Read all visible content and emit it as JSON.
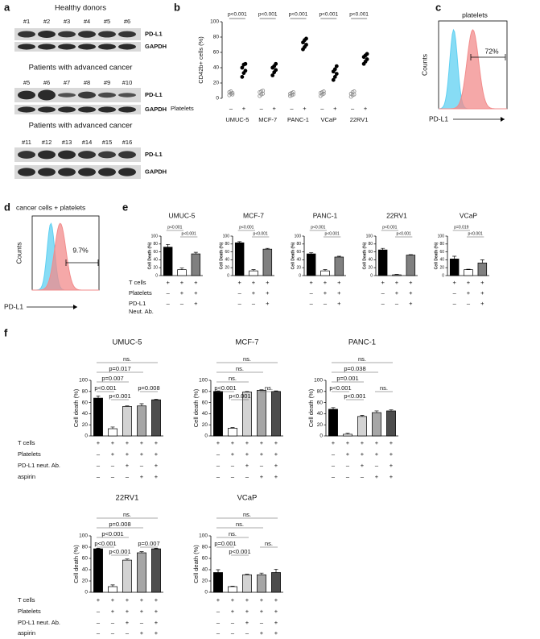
{
  "panel_labels": [
    "a",
    "b",
    "c",
    "d",
    "e",
    "f"
  ],
  "blots": [
    {
      "title": "Healthy donors",
      "lanes": [
        "#1",
        "#2",
        "#3",
        "#4",
        "#5",
        "#6"
      ],
      "bands": [
        "PD-L1",
        "GAPDH"
      ]
    },
    {
      "title": "Patients with advanced cancer",
      "lanes": [
        "#5",
        "#6",
        "#7",
        "#8",
        "#9",
        "#10"
      ],
      "bands": [
        "PD-L1",
        "GAPDH"
      ]
    },
    {
      "title": "Patients with advanced cancer",
      "lanes": [
        "#11",
        "#12",
        "#13",
        "#14",
        "#15",
        "#16"
      ],
      "bands": [
        "PD-L1",
        "GAPDH"
      ]
    }
  ],
  "chart_data": [
    {
      "type": "strip",
      "ylabel": "CD42b+ cells (%)",
      "ylim": [
        0,
        100
      ],
      "yticks": [
        0,
        20,
        40,
        60,
        80,
        100
      ],
      "categories": [
        "UMUC-5",
        "MCF-7",
        "PANC-1",
        "VCaP",
        "22RV1"
      ],
      "row_label": "Platelets",
      "signs": [
        "–",
        "+"
      ],
      "minus": [
        [
          4,
          6,
          7,
          8,
          9,
          5
        ],
        [
          3,
          5,
          6,
          8,
          9,
          10
        ],
        [
          3,
          4,
          5,
          6,
          7,
          8
        ],
        [
          3,
          5,
          6,
          7,
          8,
          9
        ],
        [
          2,
          4,
          5,
          6,
          8,
          9
        ]
      ],
      "plus": [
        [
          28,
          33,
          36,
          40,
          44,
          45
        ],
        [
          30,
          34,
          37,
          40,
          42,
          45
        ],
        [
          64,
          67,
          70,
          73,
          76,
          78
        ],
        [
          24,
          28,
          32,
          35,
          38,
          42
        ],
        [
          45,
          48,
          51,
          54,
          56,
          58
        ]
      ],
      "p_values": [
        "p<0.001",
        "p<0.001",
        "p<0.001",
        "p<0.001",
        "p<0.001"
      ],
      "colors": [
        "#8a8a8a",
        "#000000"
      ]
    },
    {
      "type": "flow",
      "title": "platelets",
      "annotation": "72%",
      "ylabel": "Counts",
      "xlabel": "PD-L1",
      "colors": [
        "#5fd0f2",
        "#f28b8b"
      ]
    },
    {
      "type": "flow",
      "title": "cancer cells + platelets",
      "annotation": "9.7%",
      "ylabel": "Counts",
      "xlabel": "PD-L1",
      "colors": [
        "#5fd0f2",
        "#f28b8b"
      ]
    },
    {
      "type": "bar",
      "title": "UMUC-5",
      "ylabel": "Cell Death (%)",
      "ylim": [
        0,
        100
      ],
      "yticks": [
        0,
        20,
        40,
        60,
        80,
        100
      ],
      "values": [
        72,
        15,
        55
      ],
      "errors": [
        7,
        4,
        4
      ],
      "colors": [
        "#000000",
        "#ffffff",
        "#808080"
      ],
      "brackets": [
        "p<0.001",
        "p<0.001"
      ],
      "signs": [
        [
          "+",
          "+",
          "+"
        ],
        [
          "–",
          "+",
          "+"
        ],
        [
          "–",
          "–",
          "+"
        ]
      ],
      "row_labels": [
        "T cells",
        "Platelets",
        "PD-L1",
        "Neut. Ab."
      ]
    },
    {
      "type": "bar",
      "title": "MCF-7",
      "ylabel": "Cell Death (%)",
      "ylim": [
        0,
        100
      ],
      "yticks": [
        0,
        20,
        40,
        60,
        80,
        100
      ],
      "values": [
        83,
        12,
        67
      ],
      "errors": [
        3,
        3,
        2
      ],
      "colors": [
        "#000000",
        "#ffffff",
        "#808080"
      ],
      "brackets": [
        "p<0.001",
        "p<0.001"
      ],
      "signs": [
        [
          "+",
          "+",
          "+"
        ],
        [
          "–",
          "+",
          "+"
        ],
        [
          "–",
          "–",
          "+"
        ]
      ]
    },
    {
      "type": "bar",
      "title": "PANC-1",
      "ylabel": "Cell Death (%)",
      "ylim": [
        0,
        100
      ],
      "yticks": [
        0,
        20,
        40,
        60,
        80,
        100
      ],
      "values": [
        55,
        12,
        47
      ],
      "errors": [
        3,
        3,
        2
      ],
      "colors": [
        "#000000",
        "#ffffff",
        "#808080"
      ],
      "brackets": [
        "p<0.001",
        "p<0.001"
      ],
      "signs": [
        [
          "+",
          "+",
          "+"
        ],
        [
          "–",
          "+",
          "+"
        ],
        [
          "–",
          "–",
          "+"
        ]
      ]
    },
    {
      "type": "bar",
      "title": "22RV1",
      "ylabel": "Cell Death (%)",
      "ylim": [
        0,
        100
      ],
      "yticks": [
        0,
        20,
        40,
        60,
        80,
        100
      ],
      "values": [
        65,
        2,
        52
      ],
      "errors": [
        4,
        1,
        1
      ],
      "colors": [
        "#000000",
        "#ffffff",
        "#808080"
      ],
      "brackets": [
        "p<0.001",
        "p<0.001"
      ],
      "signs": [
        [
          "+",
          "+",
          "+"
        ],
        [
          "–",
          "+",
          "+"
        ],
        [
          "–",
          "–",
          "+"
        ]
      ]
    },
    {
      "type": "bar",
      "title": "VCaP",
      "ylabel": "Cell Death (%)",
      "ylim": [
        0,
        100
      ],
      "yticks": [
        0,
        20,
        40,
        60,
        80,
        100
      ],
      "values": [
        42,
        15,
        32
      ],
      "errors": [
        7,
        1,
        8
      ],
      "colors": [
        "#000000",
        "#ffffff",
        "#808080"
      ],
      "brackets": [
        "p=0.019",
        "p<0.001"
      ],
      "signs": [
        [
          "+",
          "+",
          "+"
        ],
        [
          "–",
          "+",
          "+"
        ],
        [
          "–",
          "–",
          "+"
        ]
      ]
    },
    {
      "type": "bar",
      "title": "UMUC-5",
      "ylabel": "Cell death (%)",
      "ylim": [
        0,
        100
      ],
      "yticks": [
        0,
        20,
        40,
        60,
        80,
        100
      ],
      "values": [
        68,
        13,
        53,
        54,
        65
      ],
      "errors": [
        4,
        3,
        1,
        4,
        1
      ],
      "colors": [
        "#000000",
        "#ffffff",
        "#d3d3d3",
        "#a6a6a6",
        "#4d4d4d"
      ],
      "brackets": [
        "p<0.001",
        "p=0.007",
        "p=0.017",
        "ns.",
        "p<0.001",
        "p=0.008"
      ],
      "signs": [
        [
          "+",
          "+",
          "+",
          "+",
          "+"
        ],
        [
          "–",
          "+",
          "+",
          "+",
          "+"
        ],
        [
          "–",
          "–",
          "+",
          "–",
          "+"
        ],
        [
          "–",
          "–",
          "–",
          "+",
          "+"
        ]
      ],
      "row_labels": [
        "T cells",
        "Platelets",
        "PD-L1 neut. Ab.",
        "aspirin"
      ]
    },
    {
      "type": "bar",
      "title": "MCF-7",
      "ylabel": "Cell death (%)",
      "ylim": [
        0,
        100
      ],
      "yticks": [
        0,
        20,
        40,
        60,
        80,
        100
      ],
      "values": [
        80,
        14,
        79,
        82,
        80
      ],
      "errors": [
        1,
        1,
        1,
        1,
        1
      ],
      "colors": [
        "#000000",
        "#ffffff",
        "#d3d3d3",
        "#a6a6a6",
        "#4d4d4d"
      ],
      "brackets": [
        "p<0.001",
        "ns.",
        "ns.",
        "ns.",
        "p<0.001",
        "ns."
      ],
      "signs": [
        [
          "+",
          "+",
          "+",
          "+",
          "+"
        ],
        [
          "–",
          "+",
          "+",
          "+",
          "+"
        ],
        [
          "–",
          "–",
          "+",
          "–",
          "+"
        ],
        [
          "–",
          "–",
          "–",
          "+",
          "+"
        ]
      ]
    },
    {
      "type": "bar",
      "title": "PANC-1",
      "ylabel": "Cell death (%)",
      "ylim": [
        0,
        100
      ],
      "yticks": [
        0,
        20,
        40,
        60,
        80,
        100
      ],
      "values": [
        48,
        3,
        35,
        42,
        45
      ],
      "errors": [
        3,
        2,
        2,
        3,
        2
      ],
      "colors": [
        "#000000",
        "#ffffff",
        "#d3d3d3",
        "#a6a6a6",
        "#4d4d4d"
      ],
      "brackets": [
        "p<0.001",
        "p=0.001",
        "p=0.038",
        "ns.",
        "p<0.001",
        "ns."
      ],
      "signs": [
        [
          "+",
          "+",
          "+",
          "+",
          "+"
        ],
        [
          "–",
          "+",
          "+",
          "+",
          "+"
        ],
        [
          "–",
          "–",
          "+",
          "–",
          "+"
        ],
        [
          "–",
          "–",
          "–",
          "+",
          "+"
        ]
      ]
    },
    {
      "type": "bar",
      "title": "22RV1",
      "ylabel": "Cell death (%)",
      "ylim": [
        0,
        100
      ],
      "yticks": [
        0,
        20,
        40,
        60,
        80,
        100
      ],
      "values": [
        77,
        10,
        57,
        70,
        77
      ],
      "errors": [
        1,
        3,
        2,
        2,
        1
      ],
      "colors": [
        "#000000",
        "#ffffff",
        "#d3d3d3",
        "#a6a6a6",
        "#4d4d4d"
      ],
      "brackets": [
        "p<0.001",
        "p<0.001",
        "p=0.008",
        "ns.",
        "p<0.001",
        "p=0.007"
      ],
      "signs": [
        [
          "+",
          "+",
          "+",
          "+",
          "+"
        ],
        [
          "–",
          "+",
          "+",
          "+",
          "+"
        ],
        [
          "–",
          "–",
          "+",
          "–",
          "+"
        ],
        [
          "–",
          "–",
          "–",
          "+",
          "+"
        ]
      ],
      "row_labels": [
        "T cells",
        "Platelets",
        "PD-L1 neut. Ab.",
        "aspirin"
      ]
    },
    {
      "type": "bar",
      "title": "VCaP",
      "ylabel": "Cell death (%)",
      "ylim": [
        0,
        100
      ],
      "yticks": [
        0,
        20,
        40,
        60,
        80,
        100
      ],
      "values": [
        35,
        10,
        31,
        31,
        35
      ],
      "errors": [
        5,
        1,
        1,
        3,
        6
      ],
      "colors": [
        "#000000",
        "#ffffff",
        "#d3d3d3",
        "#a6a6a6",
        "#4d4d4d"
      ],
      "brackets": [
        "p=0.001",
        "ns.",
        "ns.",
        "ns.",
        "p<0.001",
        "ns."
      ],
      "signs": [
        [
          "+",
          "+",
          "+",
          "+",
          "+"
        ],
        [
          "–",
          "+",
          "+",
          "+",
          "+"
        ],
        [
          "–",
          "–",
          "+",
          "–",
          "+"
        ],
        [
          "–",
          "–",
          "–",
          "+",
          "+"
        ]
      ]
    }
  ]
}
